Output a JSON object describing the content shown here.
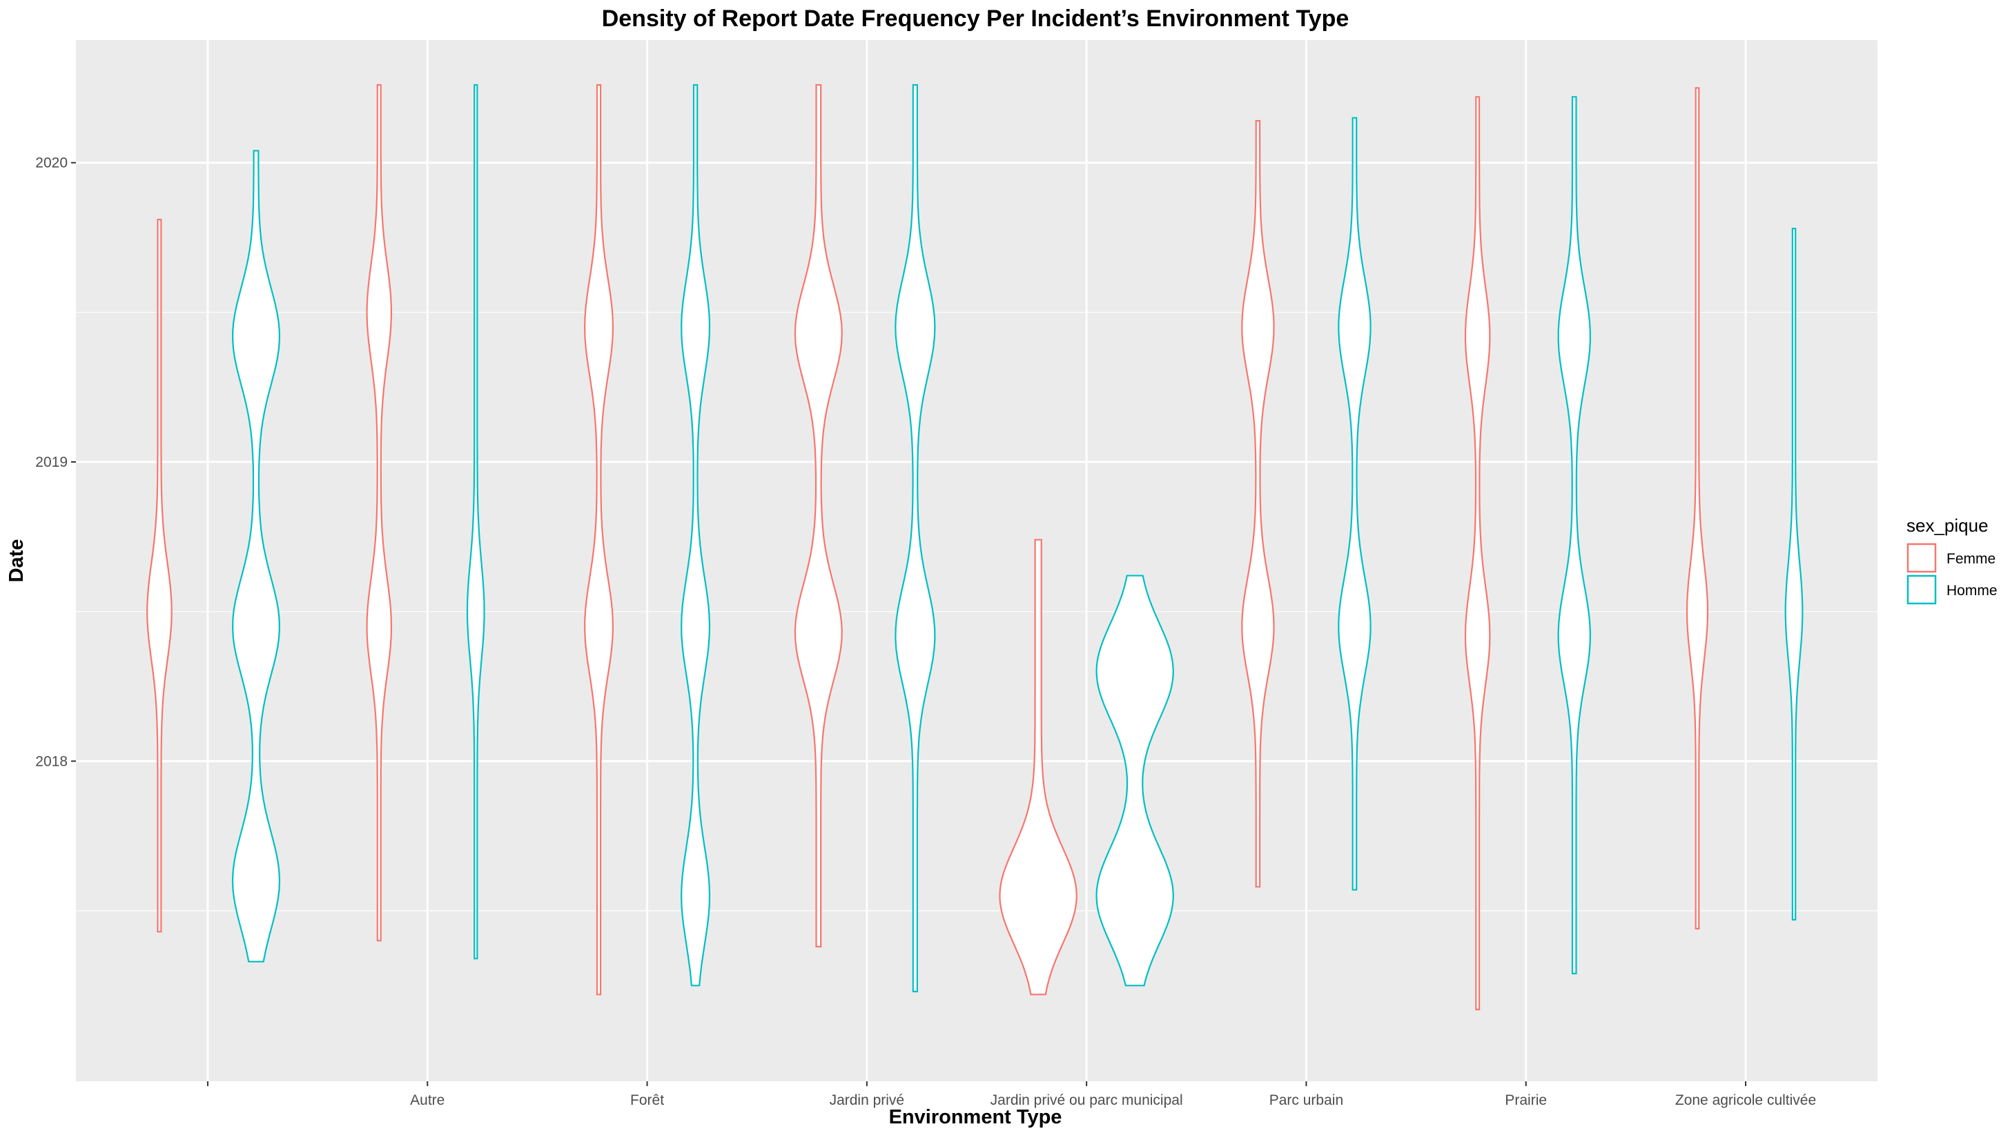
{
  "chart_data": {
    "type": "violin",
    "title": "Density of Report Date Frequency Per Incident’s Environment Type",
    "xlabel": "Environment Type",
    "ylabel": "Date",
    "categories": [
      "",
      "Autre",
      "Forêt",
      "Jardin privé",
      "Jardin privé ou parc municipal",
      "Parc urbain",
      "Prairie",
      "Zone agricole cultivée"
    ],
    "y_ticks": [
      2018,
      2019,
      2020
    ],
    "ylim": [
      2016.93,
      2020.41
    ],
    "grid": true,
    "legend": {
      "title": "sex_pique",
      "position": "right",
      "entries": [
        "Femme",
        "Homme"
      ]
    },
    "colors": {
      "Femme": "#F8766D",
      "Homme": "#00BFC4",
      "panel": "#EBEBEB",
      "grid": "#FFFFFF"
    },
    "series": [
      {
        "name": "Femme",
        "violins": [
          {
            "category": "",
            "min": 2017.43,
            "max": 2019.81,
            "modes": [
              2018.5
            ],
            "peak_halfwidth": 0.3
          },
          {
            "category": "Autre",
            "min": 2017.4,
            "max": 2020.26,
            "modes": [
              2018.45,
              2019.5
            ],
            "peak_halfwidth": 0.3
          },
          {
            "category": "Forêt",
            "min": 2017.22,
            "max": 2020.26,
            "modes": [
              2018.45,
              2019.45
            ],
            "peak_halfwidth": 0.35
          },
          {
            "category": "Jardin privé",
            "min": 2017.38,
            "max": 2020.26,
            "modes": [
              2018.43,
              2019.43
            ],
            "peak_halfwidth": 0.6
          },
          {
            "category": "Jardin privé ou parc municipal",
            "min": 2017.22,
            "max": 2018.74,
            "modes": [
              2017.55
            ],
            "peak_halfwidth": 1.0
          },
          {
            "category": "Parc urbain",
            "min": 2017.58,
            "max": 2020.14,
            "modes": [
              2018.45,
              2019.45
            ],
            "peak_halfwidth": 0.4
          },
          {
            "category": "Prairie",
            "min": 2017.17,
            "max": 2020.22,
            "modes": [
              2018.42,
              2019.42
            ],
            "peak_halfwidth": 0.3
          },
          {
            "category": "Zone agricole cultivée",
            "min": 2017.44,
            "max": 2020.25,
            "modes": [
              2018.5
            ],
            "peak_halfwidth": 0.25
          }
        ]
      },
      {
        "name": "Homme",
        "violins": [
          {
            "category": "",
            "min": 2017.33,
            "max": 2020.04,
            "modes": [
              2017.6,
              2018.45,
              2019.42
            ],
            "peak_halfwidth": 0.6
          },
          {
            "category": "Autre",
            "min": 2017.34,
            "max": 2020.26,
            "modes": [
              2018.5
            ],
            "peak_halfwidth": 0.2
          },
          {
            "category": "Forêt",
            "min": 2017.25,
            "max": 2020.26,
            "modes": [
              2017.55,
              2018.45,
              2019.45
            ],
            "peak_halfwidth": 0.35
          },
          {
            "category": "Jardin privé",
            "min": 2017.23,
            "max": 2020.26,
            "modes": [
              2018.42,
              2019.45
            ],
            "peak_halfwidth": 0.5
          },
          {
            "category": "Jardin privé ou parc municipal",
            "min": 2017.25,
            "max": 2018.62,
            "modes": [
              2017.55,
              2018.3
            ],
            "peak_halfwidth": 1.0
          },
          {
            "category": "Parc urbain",
            "min": 2017.57,
            "max": 2020.15,
            "modes": [
              2018.45,
              2019.45
            ],
            "peak_halfwidth": 0.4
          },
          {
            "category": "Prairie",
            "min": 2017.29,
            "max": 2020.22,
            "modes": [
              2018.42,
              2019.42
            ],
            "peak_halfwidth": 0.4
          },
          {
            "category": "Zone agricole cultivée",
            "min": 2017.47,
            "max": 2019.78,
            "modes": [
              2018.5
            ],
            "peak_halfwidth": 0.2
          }
        ]
      }
    ]
  }
}
